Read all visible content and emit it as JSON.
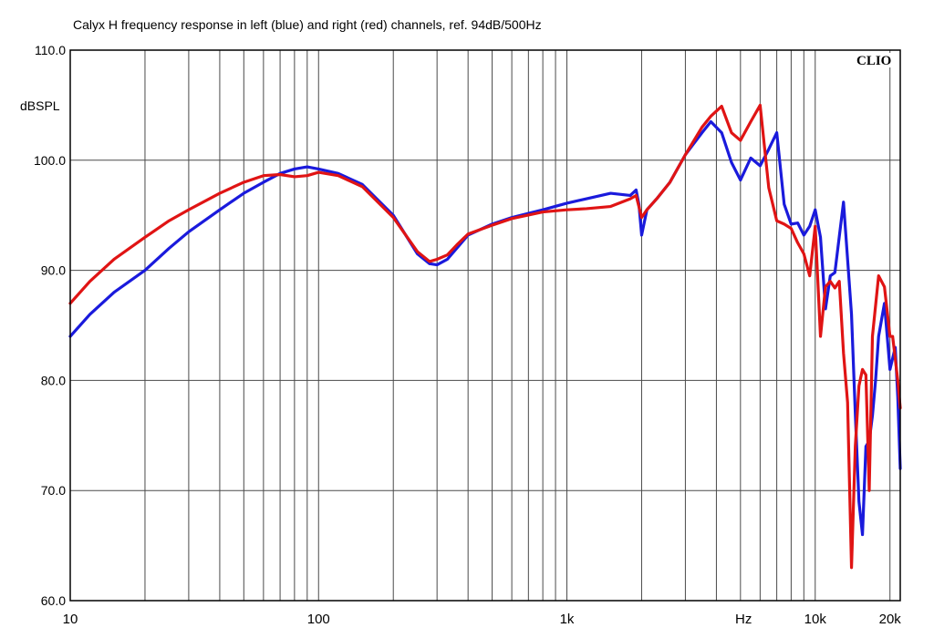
{
  "chart_data": {
    "type": "line",
    "title": "Calyx H frequency response in left (blue) and right (red) channels, ref. 94dB/500Hz",
    "ylabel": "dBSPL",
    "xlabel": "Hz",
    "brand": "CLIO",
    "x_scale": "log",
    "xlim": [
      10,
      22000
    ],
    "ylim": [
      60,
      110
    ],
    "y_ticks": [
      {
        "value": 110,
        "label": "110.0"
      },
      {
        "value": 100,
        "label": "100.0"
      },
      {
        "value": 90,
        "label": "90.0"
      },
      {
        "value": 80,
        "label": "80.0"
      },
      {
        "value": 70,
        "label": "70.0"
      },
      {
        "value": 60,
        "label": "60.0"
      }
    ],
    "x_ticks": [
      {
        "value": 10,
        "label": "10"
      },
      {
        "value": 100,
        "label": "100"
      },
      {
        "value": 1000,
        "label": "1k"
      },
      {
        "value": 10000,
        "label": "10k"
      },
      {
        "value": 20000,
        "label": "20k"
      }
    ],
    "grid": true,
    "legend": "none",
    "series": [
      {
        "color": "#1a1adc",
        "x": [
          10,
          12,
          15,
          20,
          25,
          30,
          40,
          50,
          60,
          70,
          80,
          90,
          100,
          120,
          150,
          200,
          250,
          280,
          300,
          330,
          360,
          400,
          500,
          600,
          800,
          1000,
          1200,
          1500,
          1800,
          1900,
          1950,
          2000,
          2100,
          2300,
          2600,
          3000,
          3500,
          3800,
          4200,
          4600,
          5000,
          5500,
          6000,
          6500,
          7000,
          7500,
          8000,
          8500,
          9000,
          9500,
          10000,
          10500,
          11000,
          11500,
          12000,
          13000,
          14000,
          14500,
          15000,
          15500,
          16000,
          16500,
          17000,
          17500,
          18000,
          19000,
          20000,
          20500,
          21000,
          21500,
          22000
        ],
        "y": [
          84,
          86,
          88,
          90,
          92,
          93.5,
          95.5,
          97,
          98,
          98.8,
          99.2,
          99.4,
          99.2,
          98.8,
          97.8,
          95,
          91.5,
          90.6,
          90.5,
          91,
          92,
          93.2,
          94.2,
          94.8,
          95.5,
          96.1,
          96.5,
          97,
          96.8,
          97.3,
          96,
          93.2,
          95.5,
          96.5,
          98,
          100.5,
          102.5,
          103.5,
          102.5,
          99.8,
          98.2,
          100.2,
          99.5,
          101,
          102.5,
          96,
          94.2,
          94.3,
          93.2,
          94,
          95.5,
          93,
          86.5,
          89.5,
          89.8,
          96.2,
          86,
          77,
          69,
          66,
          74,
          74.5,
          76.8,
          80,
          84,
          87,
          81,
          82,
          83,
          78.5,
          72
        ]
      },
      {
        "color": "#e01414",
        "x": [
          10,
          12,
          15,
          20,
          25,
          30,
          40,
          50,
          60,
          70,
          80,
          90,
          100,
          120,
          150,
          200,
          250,
          280,
          300,
          330,
          360,
          400,
          500,
          600,
          800,
          1000,
          1200,
          1500,
          1800,
          1900,
          2000,
          2100,
          2300,
          2600,
          3000,
          3500,
          3800,
          4200,
          4600,
          5000,
          5500,
          6000,
          6500,
          7000,
          7500,
          8000,
          8500,
          9000,
          9500,
          10000,
          10500,
          11000,
          11500,
          12000,
          12500,
          13000,
          13500,
          14000,
          14500,
          15000,
          15500,
          16000,
          16500,
          17000,
          18000,
          19000,
          20000,
          20500,
          21000,
          21500,
          22000
        ],
        "y": [
          87,
          89,
          91,
          93,
          94.5,
          95.5,
          97,
          98,
          98.6,
          98.7,
          98.5,
          98.6,
          98.9,
          98.6,
          97.6,
          94.8,
          91.7,
          90.8,
          91,
          91.4,
          92.3,
          93.3,
          94.1,
          94.7,
          95.3,
          95.5,
          95.6,
          95.8,
          96.5,
          96.8,
          94.8,
          95.5,
          96.5,
          98,
          100.5,
          103,
          104,
          104.9,
          102.5,
          101.8,
          103.5,
          105,
          97.5,
          94.5,
          94.2,
          93.8,
          92.5,
          91.5,
          89.5,
          94,
          84,
          88.5,
          89,
          88.4,
          89,
          82.5,
          78,
          63,
          74,
          79.5,
          81,
          80.5,
          70,
          84,
          89.5,
          88.5,
          84,
          84,
          82,
          80,
          77.5
        ]
      }
    ]
  }
}
